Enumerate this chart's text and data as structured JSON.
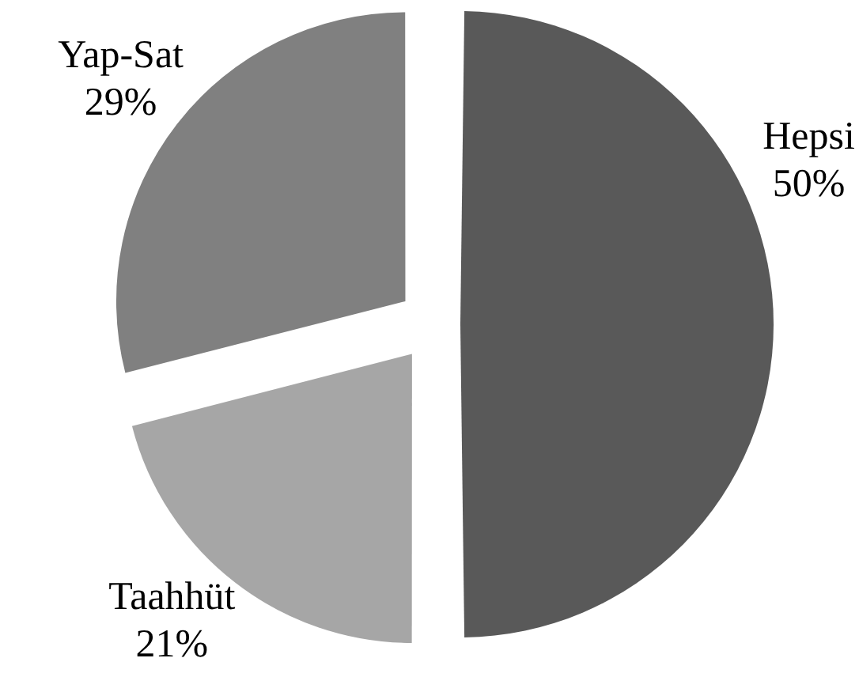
{
  "chart_data": {
    "type": "pie",
    "categories": [
      "Hepsi",
      "Taahhüt",
      "Yap-Sat"
    ],
    "values": [
      50,
      21,
      29
    ],
    "colors": [
      "#595959",
      "#a6a6a6",
      "#808080"
    ],
    "value_labels": [
      "50%",
      "21%",
      "29%"
    ]
  }
}
